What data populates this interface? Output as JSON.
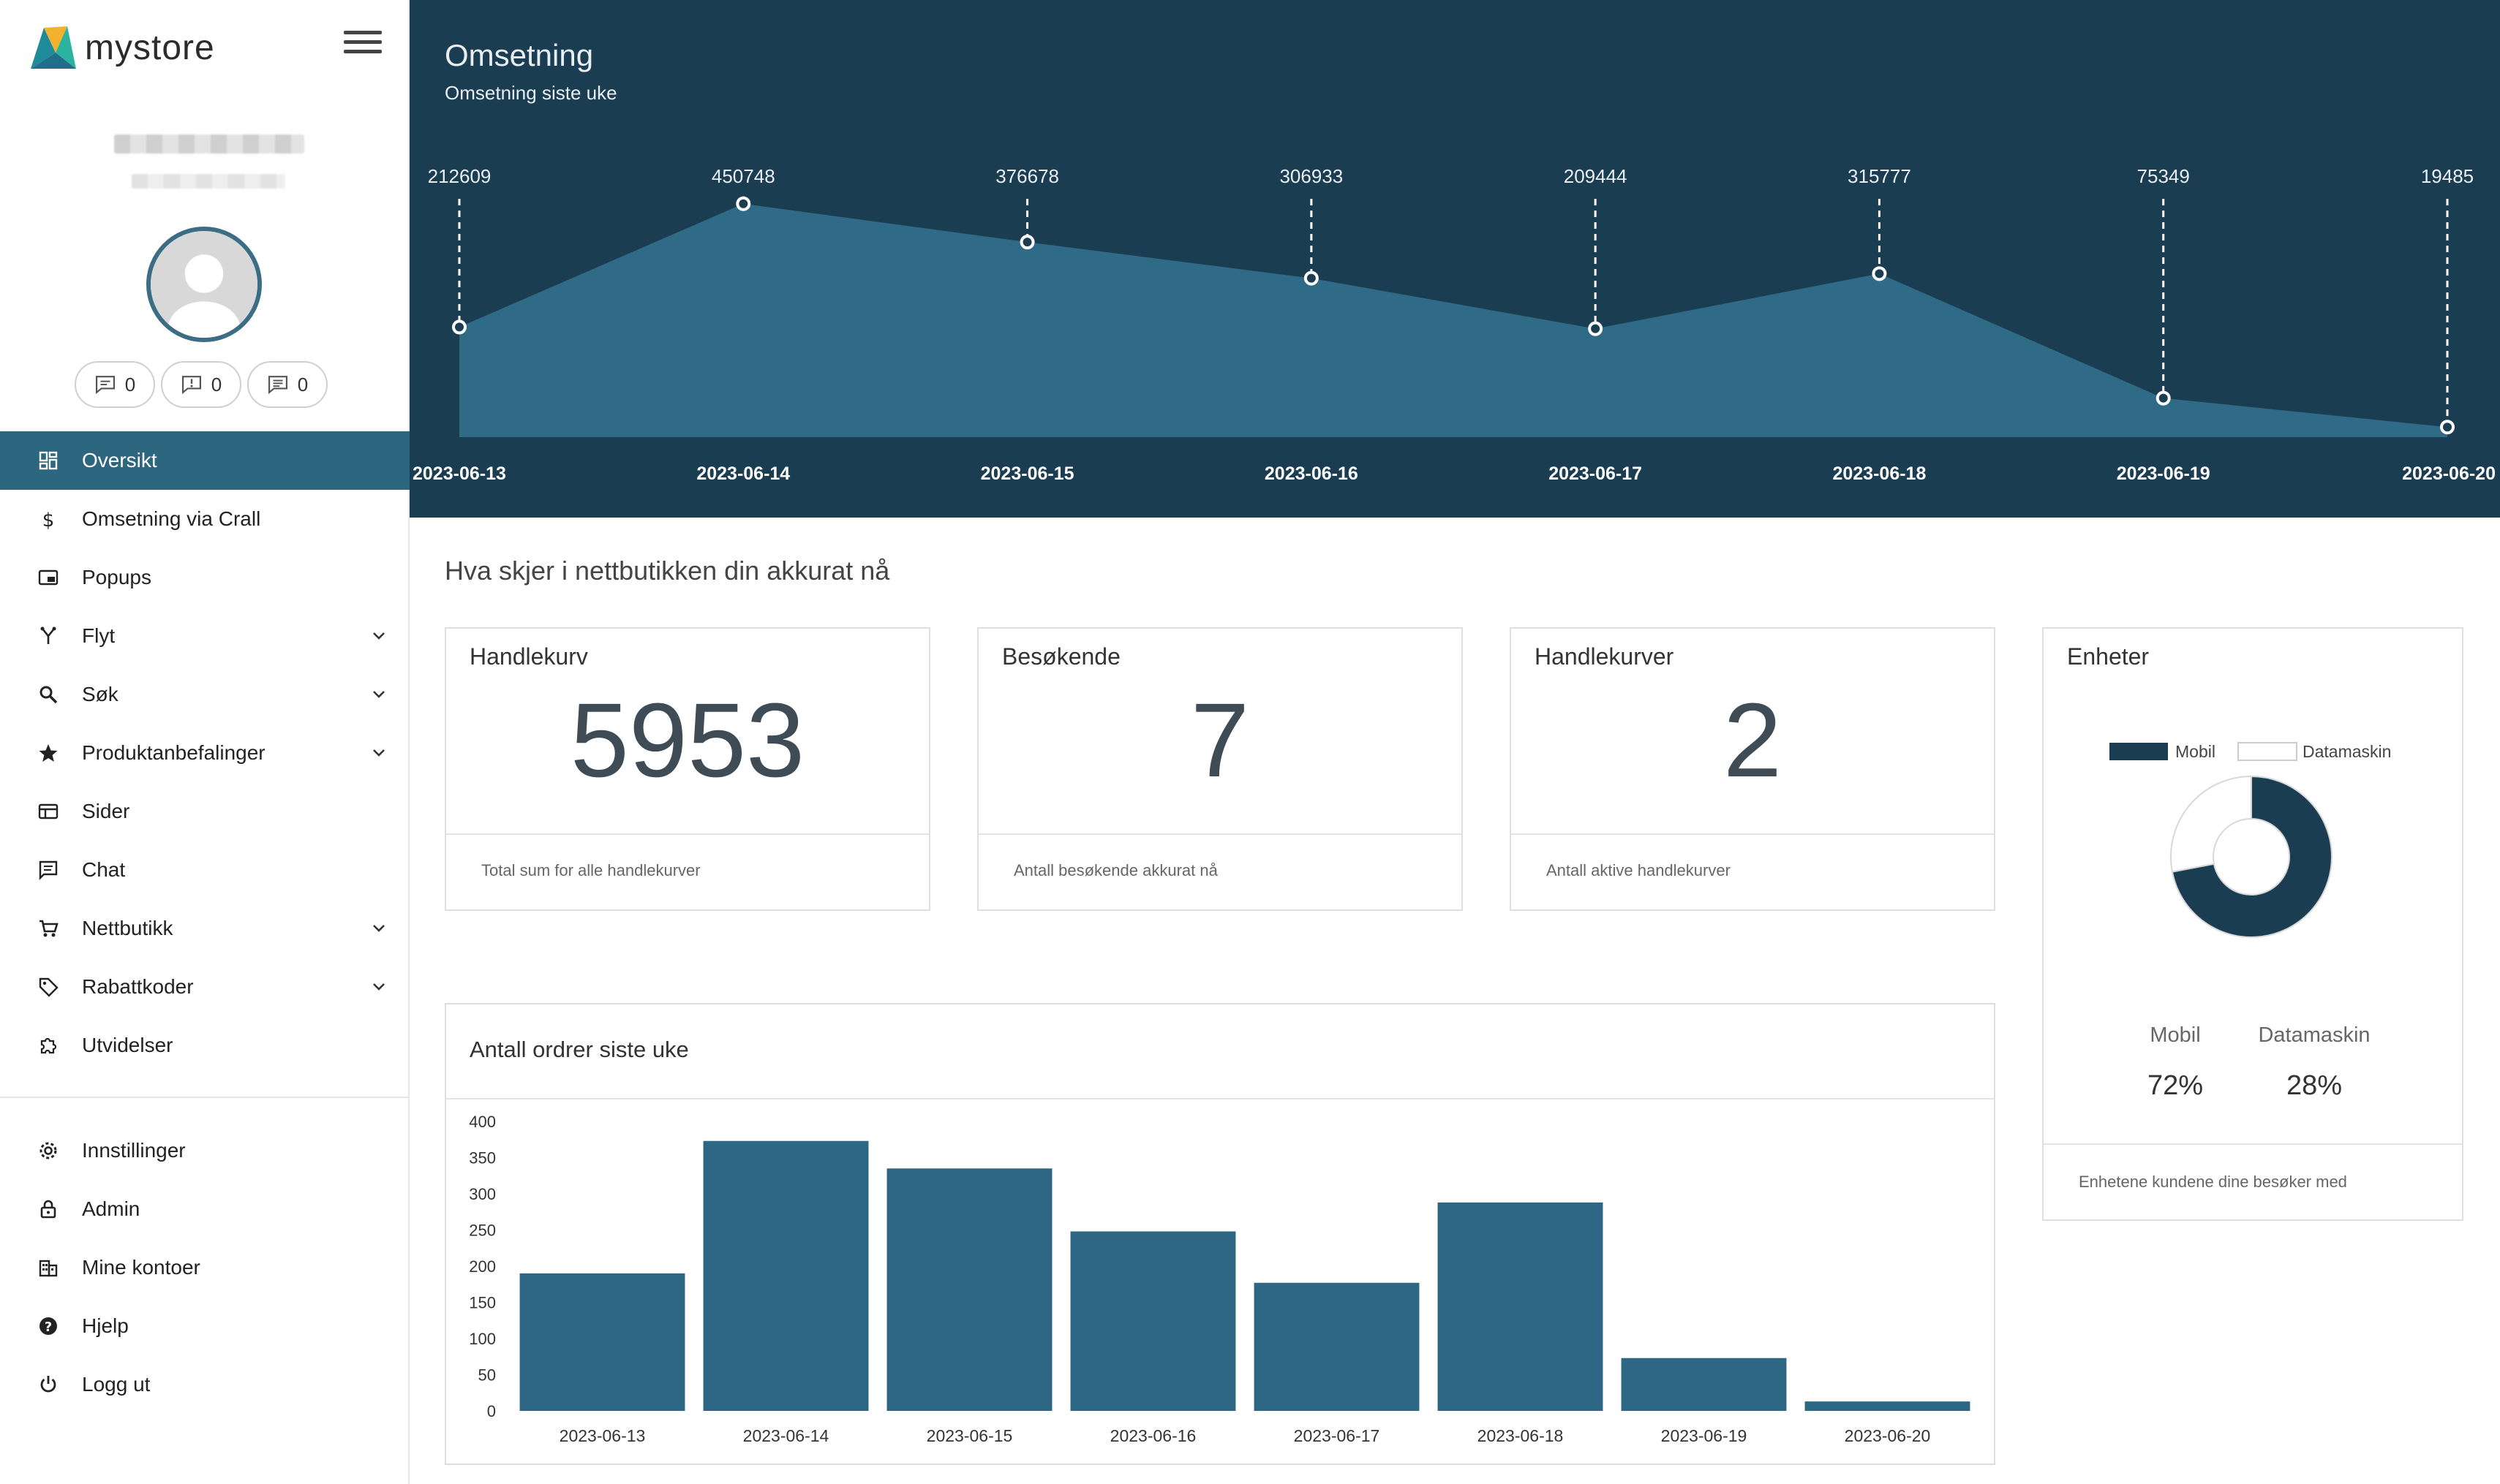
{
  "brand": {
    "name": "mystore"
  },
  "counters": [
    {
      "icon": "message-outline-icon",
      "value": "0"
    },
    {
      "icon": "feedback-icon",
      "value": "0"
    },
    {
      "icon": "chat-icon",
      "value": "0"
    }
  ],
  "nav": [
    {
      "label": "Oversikt",
      "icon": "dashboard-icon",
      "active": true,
      "expandable": false
    },
    {
      "label": "Omsetning via Crall",
      "icon": "dollar-icon",
      "active": false,
      "expandable": false
    },
    {
      "label": "Popups",
      "icon": "popup-icon",
      "active": false,
      "expandable": false
    },
    {
      "label": "Flyt",
      "icon": "flow-icon",
      "active": false,
      "expandable": true
    },
    {
      "label": "Søk",
      "icon": "search-icon",
      "active": false,
      "expandable": true
    },
    {
      "label": "Produktanbefalinger",
      "icon": "star-icon",
      "active": false,
      "expandable": true
    },
    {
      "label": "Sider",
      "icon": "pages-icon",
      "active": false,
      "expandable": false
    },
    {
      "label": "Chat",
      "icon": "chat-icon",
      "active": false,
      "expandable": false
    },
    {
      "label": "Nettbutikk",
      "icon": "cart-icon",
      "active": false,
      "expandable": true
    },
    {
      "label": "Rabattkoder",
      "icon": "tag-icon",
      "active": false,
      "expandable": true
    },
    {
      "label": "Utvidelser",
      "icon": "puzzle-icon",
      "active": false,
      "expandable": false
    }
  ],
  "nav_bottom": [
    {
      "label": "Innstillinger",
      "icon": "gear-icon"
    },
    {
      "label": "Admin",
      "icon": "lock-icon"
    },
    {
      "label": "Mine kontoer",
      "icon": "building-icon"
    },
    {
      "label": "Hjelp",
      "icon": "help-icon"
    },
    {
      "label": "Logg ut",
      "icon": "power-icon"
    }
  ],
  "revenue": {
    "title": "Omsetning",
    "subtitle": "Omsetning siste uke"
  },
  "section_title": "Hva skjer i nettbutikken din akkurat nå",
  "kpis": {
    "cart": {
      "title": "Handlekurv",
      "value": "5953",
      "footer": "Total sum for alle handlekurver"
    },
    "visitors": {
      "title": "Besøkende",
      "value": "7",
      "footer": "Antall besøkende akkurat nå"
    },
    "carts": {
      "title": "Handlekurver",
      "value": "2",
      "footer": "Antall aktive handlekurver"
    }
  },
  "devices": {
    "title": "Enheter",
    "footer": "Enhetene kundene dine besøker med",
    "mobile_label": "Mobil",
    "desktop_label": "Datamaskin",
    "mobile_pct": "72%",
    "desktop_pct": "28%"
  },
  "orders": {
    "title": "Antall ordrer siste uke"
  },
  "colors": {
    "header_bg": "#1a3d52",
    "area_fill": "#2f6a86",
    "bar_fill": "#2d6783",
    "accent": "#2d667f",
    "donut_dark": "#1a3d52"
  },
  "chart_data": [
    {
      "type": "area",
      "title": "Omsetning",
      "subtitle": "Omsetning siste uke",
      "categories": [
        "2023-06-13",
        "2023-06-14",
        "2023-06-15",
        "2023-06-16",
        "2023-06-17",
        "2023-06-18",
        "2023-06-19",
        "2023-06-20"
      ],
      "values": [
        212609,
        450748,
        376678,
        306933,
        209444,
        315777,
        75349,
        19485
      ],
      "data_labels": true,
      "grid": false
    },
    {
      "type": "pie",
      "title": "Enheter",
      "labels": [
        "Mobil",
        "Datamaskin"
      ],
      "values": [
        72,
        28
      ],
      "legend": "top"
    },
    {
      "type": "bar",
      "title": "Antall ordrer siste uke",
      "categories": [
        "2023-06-13",
        "2023-06-14",
        "2023-06-15",
        "2023-06-16",
        "2023-06-17",
        "2023-06-18",
        "2023-06-19",
        "2023-06-20"
      ],
      "values": [
        190,
        373,
        335,
        248,
        177,
        288,
        73,
        13
      ],
      "ylim": [
        0,
        400
      ],
      "yticks": [
        0,
        50,
        100,
        150,
        200,
        250,
        300,
        350,
        400
      ],
      "grid": false
    }
  ]
}
